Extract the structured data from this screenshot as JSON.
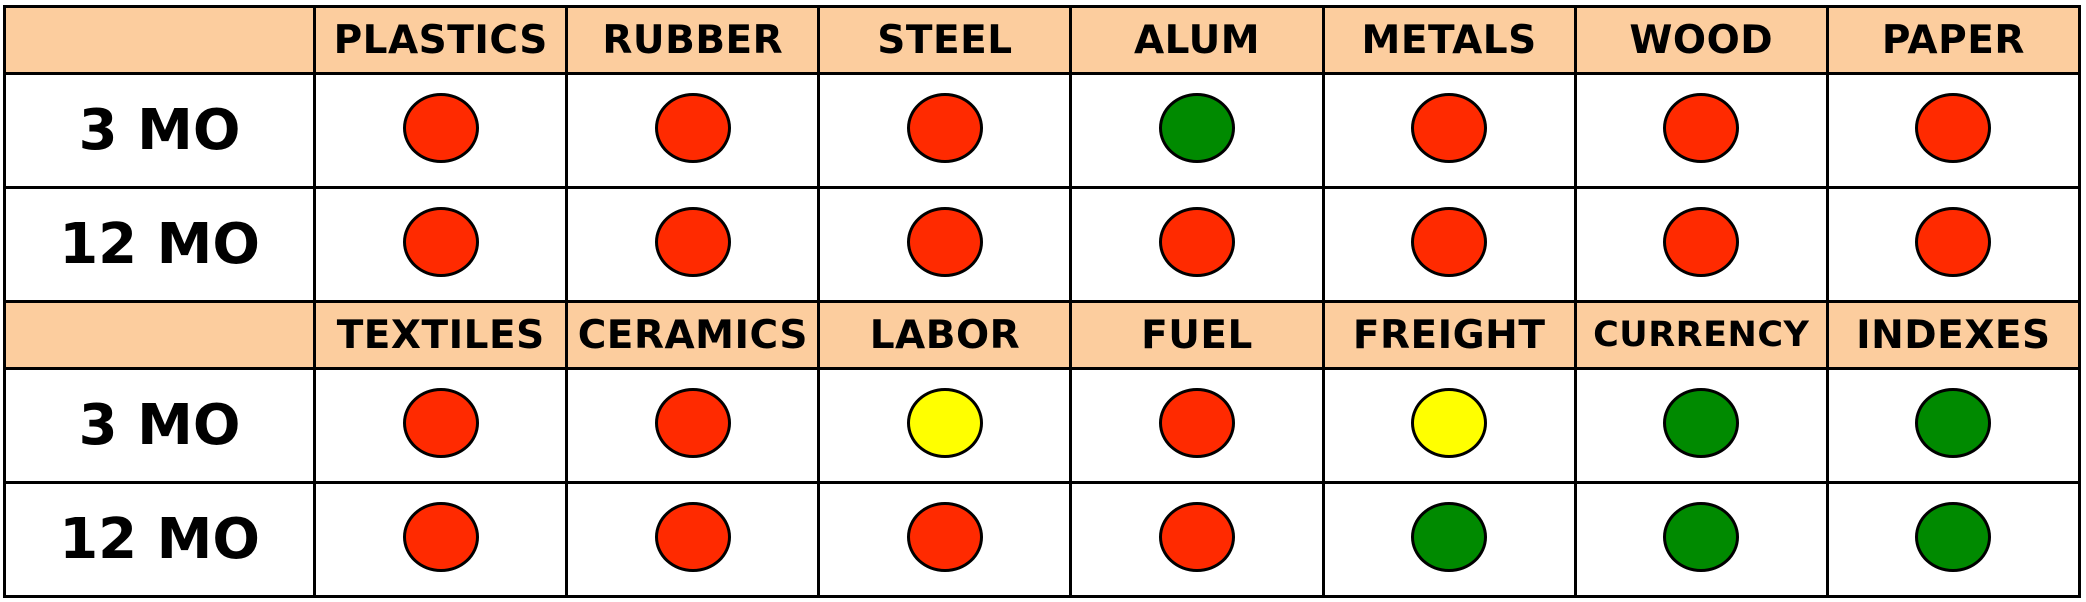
{
  "colors": {
    "header_bg": "#fccd9e",
    "red": "#ff2a00",
    "green": "#008a00",
    "yellow": "#ffff00"
  },
  "sections": [
    {
      "categories": [
        "PLASTICS",
        "RUBBER",
        "STEEL",
        "ALUM",
        "METALS",
        "WOOD",
        "PAPER"
      ],
      "rows": [
        {
          "label": "3 MO",
          "status": [
            "red",
            "red",
            "red",
            "green",
            "red",
            "red",
            "red"
          ]
        },
        {
          "label": "12 MO",
          "status": [
            "red",
            "red",
            "red",
            "red",
            "red",
            "red",
            "red"
          ]
        }
      ]
    },
    {
      "categories": [
        "TEXTILES",
        "CERAMICS",
        "LABOR",
        "FUEL",
        "FREIGHT",
        "CURRENCY",
        "INDEXES"
      ],
      "rows": [
        {
          "label": "3 MO",
          "status": [
            "red",
            "red",
            "yellow",
            "red",
            "yellow",
            "green",
            "green"
          ]
        },
        {
          "label": "12 MO",
          "status": [
            "red",
            "red",
            "red",
            "red",
            "green",
            "green",
            "green"
          ]
        }
      ]
    }
  ]
}
